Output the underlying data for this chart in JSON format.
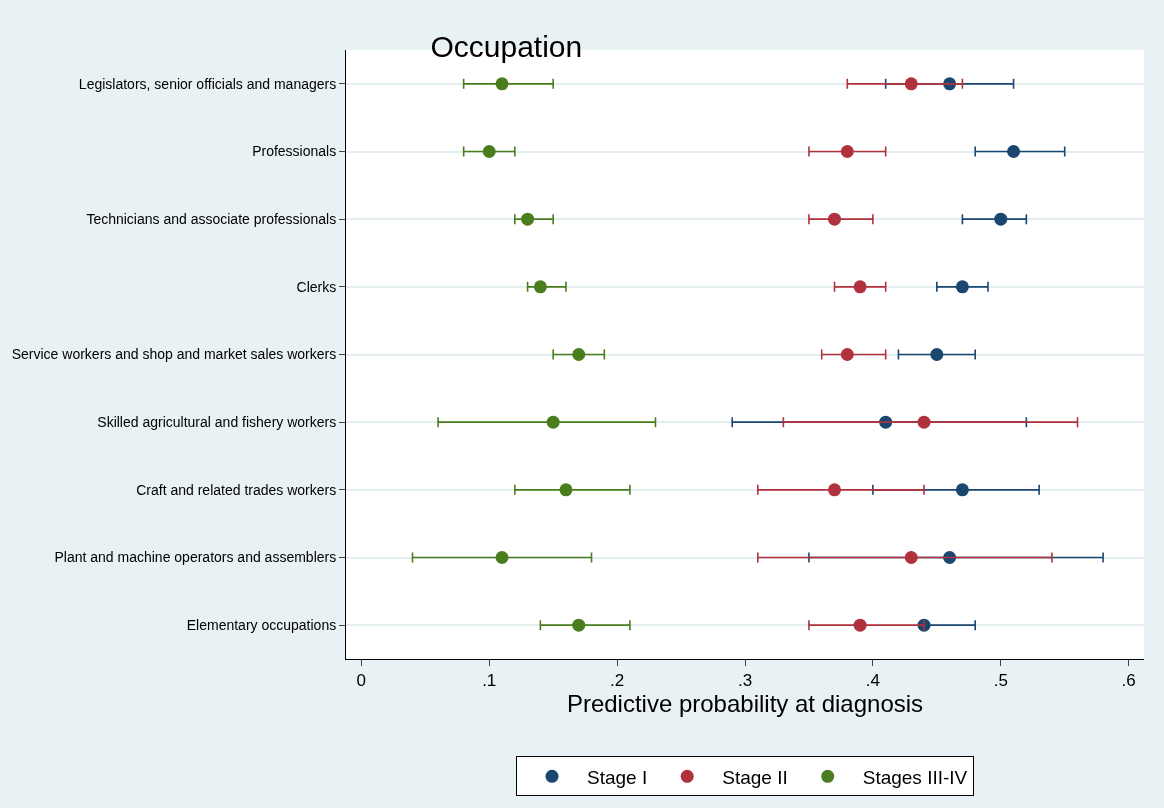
{
  "chart_data": {
    "type": "scatter",
    "title": "Occupation",
    "xlabel": "Predictive probability at diagnosis",
    "categories": [
      "Legislators, senior officials and managers",
      "Professionals",
      "Technicians and associate professionals",
      "Clerks",
      "Service workers and shop and market sales workers",
      "Skilled agricultural and fishery workers",
      "Craft and related trades workers",
      "Plant and machine operators and assemblers",
      "Elementary occupations"
    ],
    "series": [
      {
        "name": "Stage I",
        "color": "#1a476f",
        "values": [
          0.46,
          0.51,
          0.5,
          0.47,
          0.45,
          0.41,
          0.47,
          0.46,
          0.44
        ],
        "errors": [
          [
            0.41,
            0.51
          ],
          [
            0.48,
            0.55
          ],
          [
            0.47,
            0.52
          ],
          [
            0.45,
            0.49
          ],
          [
            0.42,
            0.48
          ],
          [
            0.29,
            0.52
          ],
          [
            0.4,
            0.53
          ],
          [
            0.35,
            0.58
          ],
          [
            0.44,
            0.48
          ]
        ]
      },
      {
        "name": "Stage II",
        "color": "#b0323c",
        "values": [
          0.43,
          0.38,
          0.37,
          0.39,
          0.38,
          0.44,
          0.37,
          0.43,
          0.39
        ],
        "errors": [
          [
            0.38,
            0.47
          ],
          [
            0.35,
            0.41
          ],
          [
            0.35,
            0.4
          ],
          [
            0.37,
            0.41
          ],
          [
            0.36,
            0.41
          ],
          [
            0.33,
            0.56
          ],
          [
            0.31,
            0.44
          ],
          [
            0.31,
            0.54
          ],
          [
            0.35,
            0.44
          ]
        ]
      },
      {
        "name": "Stages III-IV",
        "color": "#4a7d1e",
        "values": [
          0.11,
          0.1,
          0.13,
          0.14,
          0.17,
          0.15,
          0.16,
          0.11,
          0.17
        ],
        "errors": [
          [
            0.08,
            0.15
          ],
          [
            0.08,
            0.12
          ],
          [
            0.12,
            0.15
          ],
          [
            0.13,
            0.16
          ],
          [
            0.15,
            0.19
          ],
          [
            0.06,
            0.23
          ],
          [
            0.12,
            0.21
          ],
          [
            0.04,
            0.18
          ],
          [
            0.14,
            0.21
          ]
        ]
      }
    ],
    "xlim": [
      -0.012,
      0.612
    ],
    "xticks": [
      {
        "value": 0,
        "label": "0"
      },
      {
        "value": 0.1,
        "label": ".1"
      },
      {
        "value": 0.2,
        "label": ".2"
      },
      {
        "value": 0.3,
        "label": ".3"
      },
      {
        "value": 0.4,
        "label": ".4"
      },
      {
        "value": 0.5,
        "label": ".5"
      },
      {
        "value": 0.6,
        "label": ".6"
      }
    ],
    "orientation": "horizontal",
    "grid": "y",
    "legend": "bottom",
    "marker": "circle"
  }
}
